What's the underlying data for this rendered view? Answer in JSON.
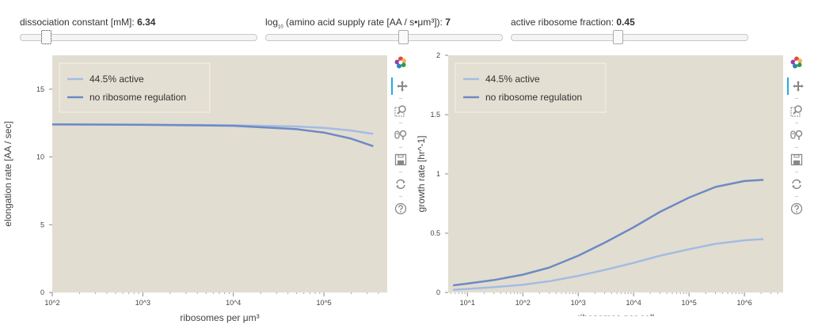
{
  "sliders": [
    {
      "label": "dissociation constant [mM]: ",
      "value": "6.34",
      "fraction": 0.11
    },
    {
      "label_prefix": "log",
      "label_sub": "10",
      "label_rest": " (amino acid supply rate [AA / s•μm³]): ",
      "value": "7",
      "fraction": 0.58
    },
    {
      "label": "active ribosome fraction: ",
      "value": "0.45",
      "fraction": 0.45
    }
  ],
  "colors": {
    "plot_bg": "#e2ddd1",
    "line_light": "#a3bce3",
    "line_dark": "#6d8ac4",
    "legend_bg": "#e4dfd3"
  },
  "toolbar_icons": [
    "bokeh-logo-icon",
    "pan-icon",
    "box-zoom-icon",
    "wheel-zoom-icon",
    "save-icon",
    "reset-icon",
    "help-icon"
  ],
  "chart_data": [
    {
      "type": "line",
      "xlabel": "ribosomes per μm³",
      "ylabel": "elongation rate [AA / sec]",
      "x_scale": "log",
      "xlim": [
        100,
        500000
      ],
      "ylim": [
        0,
        17.5
      ],
      "xticks": [
        {
          "value": 100,
          "label": "10^2"
        },
        {
          "value": 1000,
          "label": "10^3"
        },
        {
          "value": 10000,
          "label": "10^4"
        },
        {
          "value": 100000,
          "label": "10^5"
        }
      ],
      "yticks": [
        {
          "value": 0,
          "label": "0"
        },
        {
          "value": 5,
          "label": "5"
        },
        {
          "value": 10,
          "label": "10"
        },
        {
          "value": 15,
          "label": "15"
        }
      ],
      "legend": {
        "placement": "top-left",
        "entries": [
          "44.5% active",
          "no ribosome regulation"
        ]
      },
      "series": [
        {
          "name": "44.5% active",
          "color": "#a3bce3",
          "x": [
            100,
            1000,
            10000,
            50000,
            100000,
            200000,
            350000
          ],
          "y": [
            12.4,
            12.39,
            12.34,
            12.25,
            12.15,
            11.95,
            11.7
          ]
        },
        {
          "name": "no ribosome regulation",
          "color": "#6d8ac4",
          "x": [
            100,
            1000,
            10000,
            50000,
            100000,
            200000,
            350000
          ],
          "y": [
            12.4,
            12.37,
            12.3,
            12.05,
            11.8,
            11.35,
            10.8
          ]
        }
      ]
    },
    {
      "type": "line",
      "xlabel": "ribosomes per cell",
      "ylabel": "growth rate [hr^-1]",
      "x_scale": "log",
      "xlim": [
        4.5,
        5000000
      ],
      "ylim": [
        0,
        2
      ],
      "xticks": [
        {
          "value": 10,
          "label": "10^1"
        },
        {
          "value": 100,
          "label": "10^2"
        },
        {
          "value": 1000,
          "label": "10^3"
        },
        {
          "value": 10000,
          "label": "10^4"
        },
        {
          "value": 100000,
          "label": "10^5"
        },
        {
          "value": 1000000,
          "label": "10^6"
        }
      ],
      "yticks": [
        {
          "value": 0,
          "label": "0"
        },
        {
          "value": 0.5,
          "label": "0.5"
        },
        {
          "value": 1,
          "label": "1"
        },
        {
          "value": 1.5,
          "label": "1.5"
        },
        {
          "value": 2,
          "label": "2"
        }
      ],
      "legend": {
        "placement": "top-left",
        "entries": [
          "44.5% active",
          "no ribosome regulation"
        ]
      },
      "series": [
        {
          "name": "44.5% active",
          "color": "#a3bce3",
          "x": [
            5.5,
            10,
            30,
            100,
            300,
            1000,
            3000,
            10000,
            30000,
            100000,
            300000,
            1000000,
            2200000
          ],
          "y": [
            0.023,
            0.03,
            0.045,
            0.065,
            0.095,
            0.14,
            0.19,
            0.25,
            0.31,
            0.365,
            0.41,
            0.44,
            0.45
          ]
        },
        {
          "name": "no ribosome regulation",
          "color": "#6d8ac4",
          "x": [
            5.5,
            10,
            30,
            100,
            300,
            1000,
            3000,
            10000,
            30000,
            100000,
            300000,
            1000000,
            2200000
          ],
          "y": [
            0.06,
            0.075,
            0.105,
            0.15,
            0.21,
            0.31,
            0.42,
            0.55,
            0.68,
            0.8,
            0.89,
            0.94,
            0.95
          ]
        }
      ]
    }
  ]
}
